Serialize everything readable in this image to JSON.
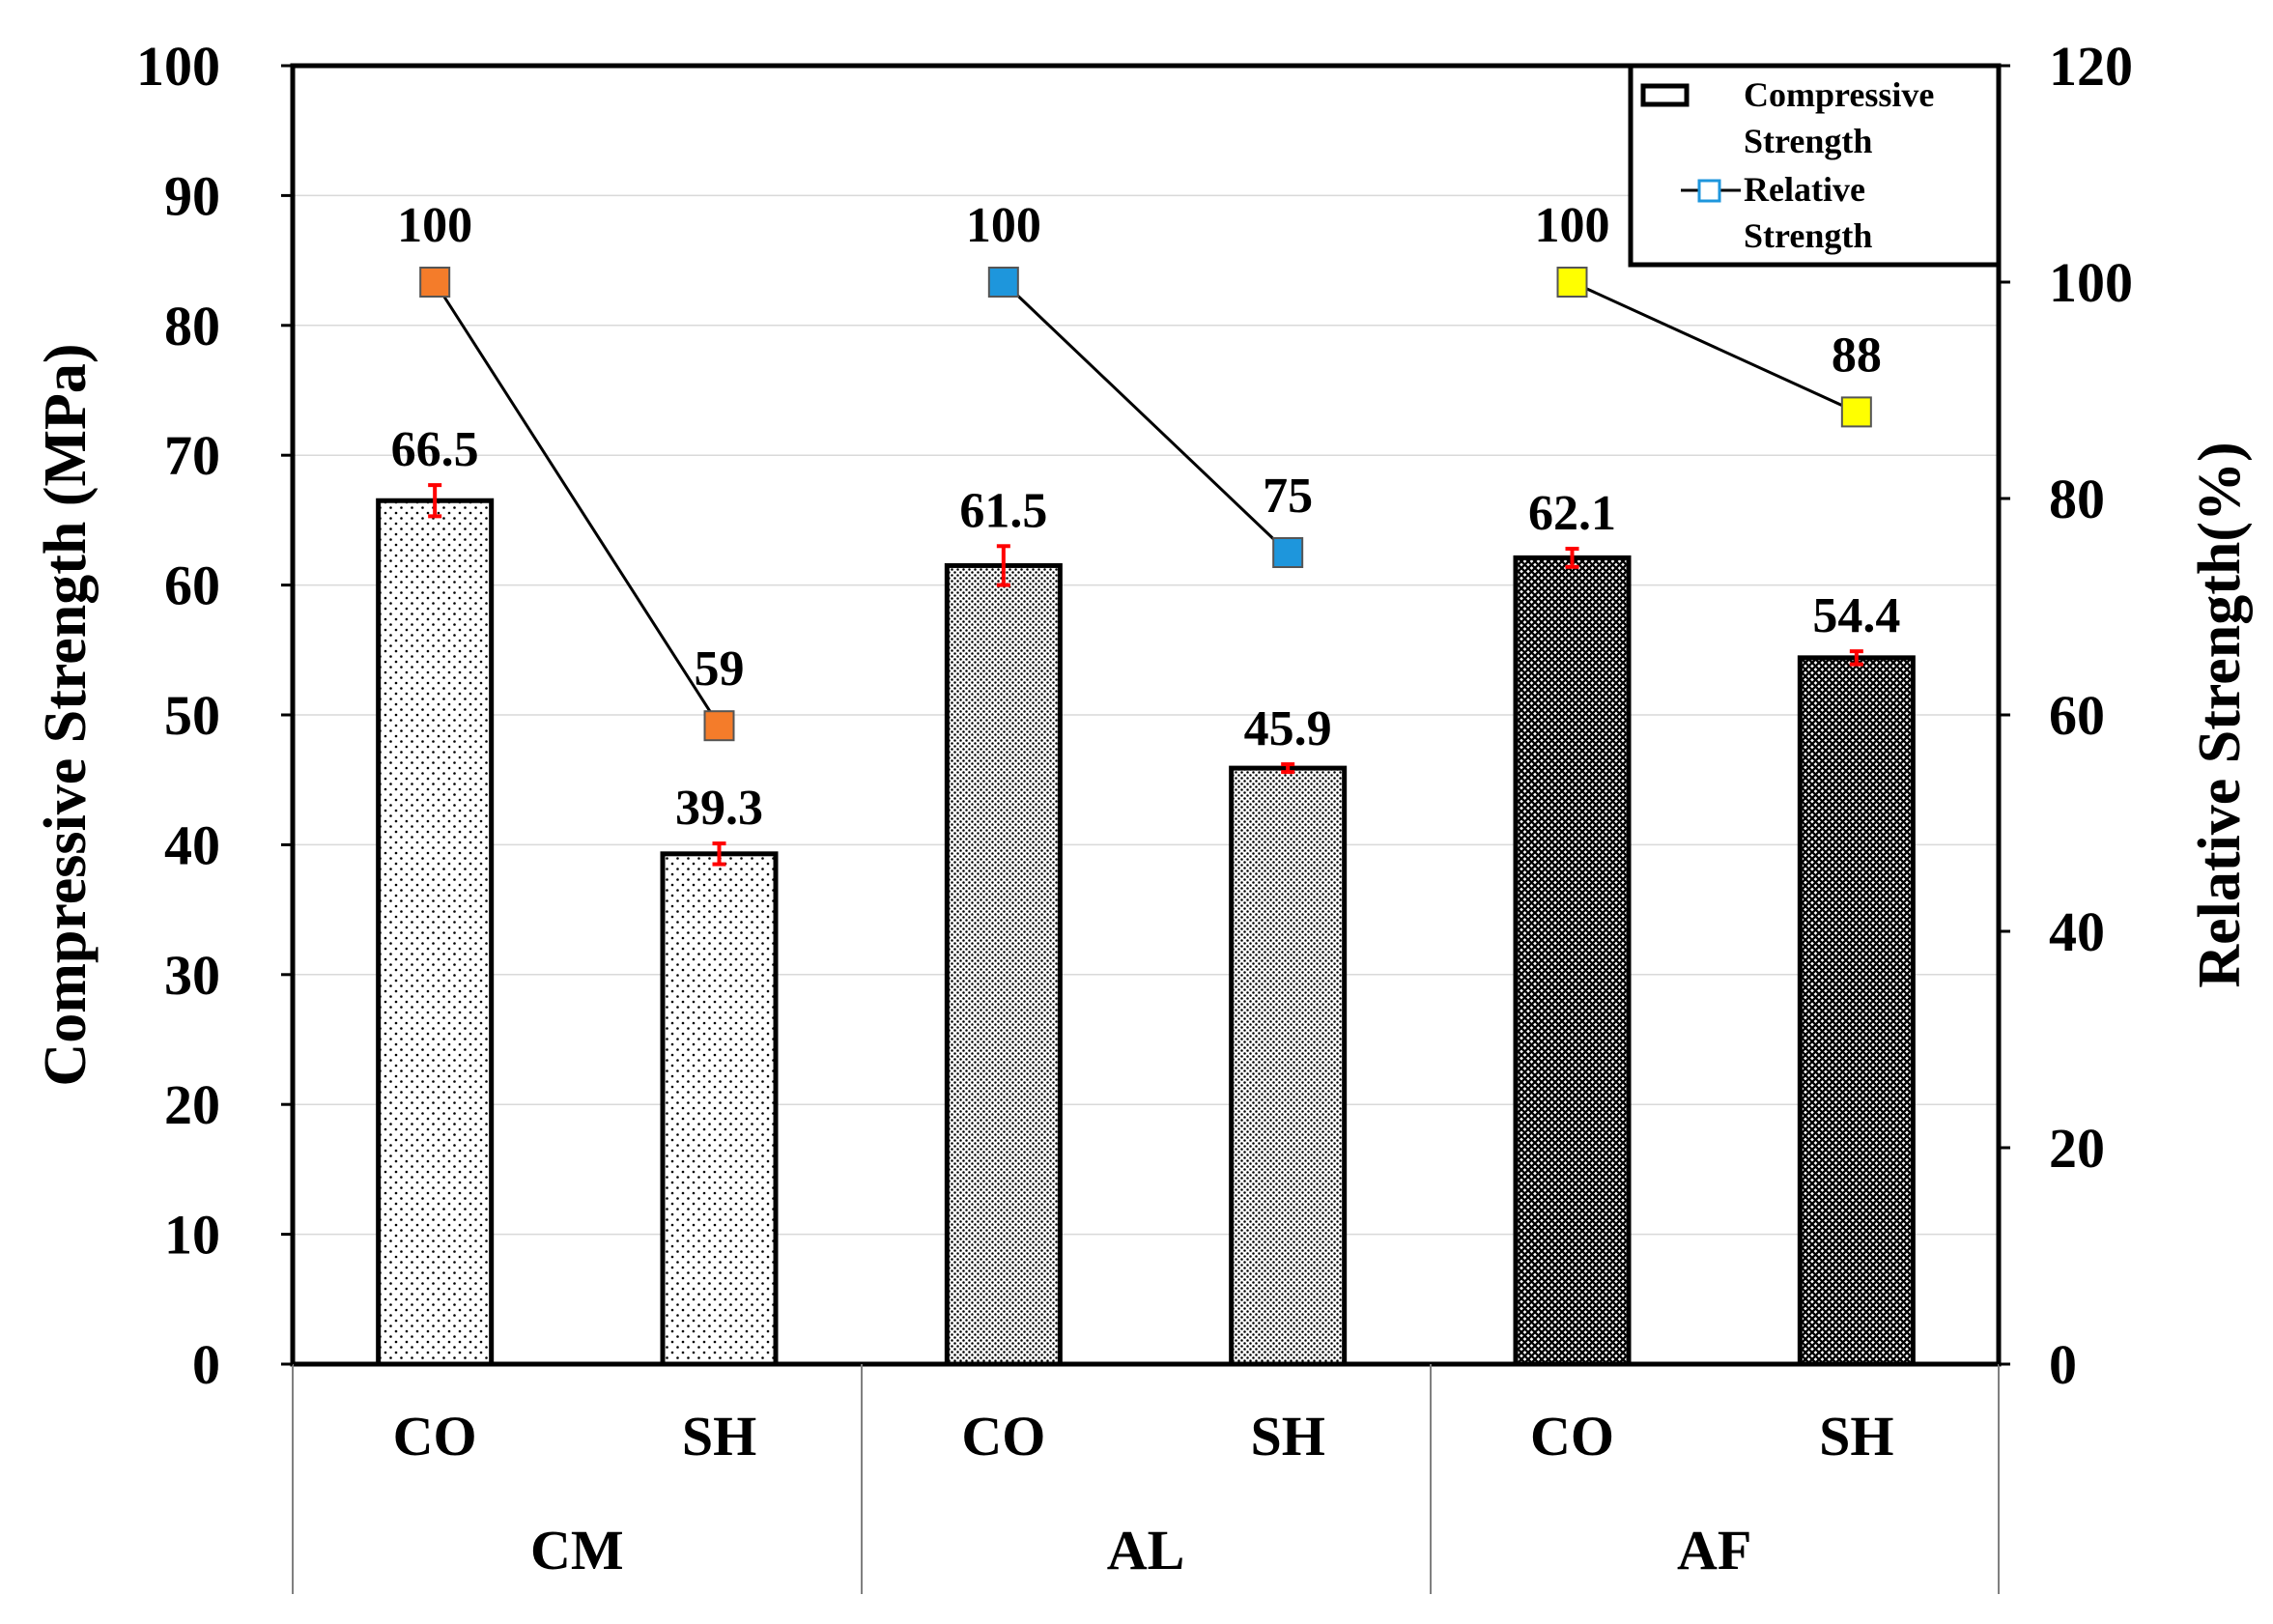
{
  "chart_data": {
    "type": "bar",
    "title": "",
    "groups": [
      "CM",
      "AL",
      "AF"
    ],
    "categories": [
      "CO",
      "SH",
      "CO",
      "SH",
      "CO",
      "SH"
    ],
    "series": [
      {
        "name": "Compressive Strength",
        "axis": "left",
        "kind": "bar",
        "values": [
          66.5,
          39.3,
          61.5,
          45.9,
          62.1,
          54.4
        ],
        "errors": [
          1.2,
          0.8,
          1.5,
          0.3,
          0.7,
          0.5
        ],
        "labels": [
          "66.5",
          "39.3",
          "61.5",
          "45.9",
          "62.1",
          "54.4"
        ]
      },
      {
        "name": "Relative Strength",
        "axis": "right",
        "kind": "line-marker",
        "values": [
          100,
          59,
          100,
          75,
          100,
          88
        ],
        "labels": [
          "100",
          "59",
          "100",
          "75",
          "100",
          "88"
        ]
      }
    ],
    "marker_colors": [
      "#F47C2A",
      "#F47C2A",
      "#1E96DC",
      "#1E96DC",
      "#FFFF00",
      "#FFFF00"
    ],
    "bar_patterns": [
      "dots-sparse",
      "dots-sparse",
      "dots-dense",
      "dots-dense",
      "crosshatch",
      "crosshatch"
    ],
    "error_color": "#FF0000",
    "ylabel": "Compressive Strength (MPa)",
    "ylim": [
      0,
      100
    ],
    "yticks": [
      "0",
      "10",
      "20",
      "30",
      "40",
      "50",
      "60",
      "70",
      "80",
      "90",
      "100"
    ],
    "y2label": "Relative Strength(%)",
    "y2lim": [
      0,
      120
    ],
    "y2ticks": [
      "0",
      "20",
      "40",
      "60",
      "80",
      "100",
      "120"
    ],
    "legend": {
      "position": "top-right",
      "items": [
        {
          "line1": "Compressive",
          "line2": "Strength"
        },
        {
          "line1": "Relative",
          "line2": "Strength"
        }
      ]
    },
    "grid": true
  }
}
